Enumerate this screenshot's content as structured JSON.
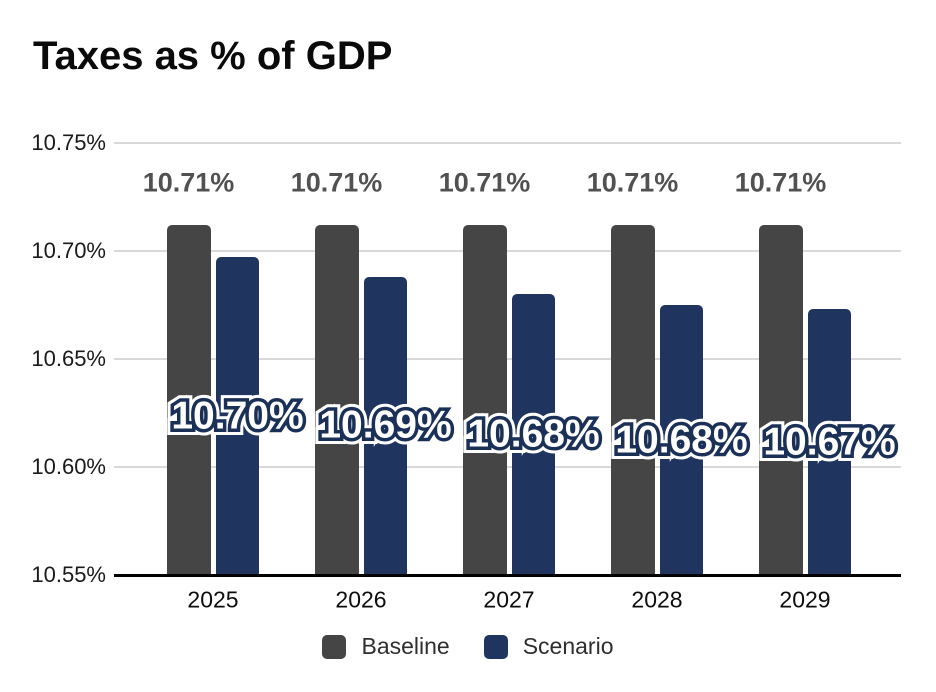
{
  "title": "Taxes as % of GDP",
  "colors": {
    "baseline_bar": "#454545",
    "scenario_bar": "#203460",
    "gridline": "#d9d9d9",
    "axis_line": "#000000",
    "baseline_data_label": "#515151",
    "scenario_data_label_fill": "#ffffff",
    "scenario_data_label_outline": "#1b3057",
    "background": "#ffffff"
  },
  "chart_data": {
    "type": "bar",
    "title": "Taxes as % of GDP",
    "categories": [
      "2025",
      "2026",
      "2027",
      "2028",
      "2029"
    ],
    "series": [
      {
        "name": "Baseline",
        "color": "#454545",
        "values": [
          10.712,
          10.712,
          10.712,
          10.712,
          10.712
        ],
        "data_labels": [
          "10.71%",
          "10.71%",
          "10.71%",
          "10.71%",
          "10.71%"
        ]
      },
      {
        "name": "Scenario",
        "color": "#203460",
        "values": [
          10.697,
          10.688,
          10.68,
          10.675,
          10.673
        ],
        "data_labels": [
          "10.70%",
          "10.69%",
          "10.68%",
          "10.68%",
          "10.67%"
        ]
      }
    ],
    "xlabel": "",
    "ylabel": "",
    "ylim": [
      10.55,
      10.75
    ],
    "yticks": [
      {
        "label": "10.75%",
        "value": 10.75
      },
      {
        "label": "10.70%",
        "value": 10.7
      },
      {
        "label": "10.65%",
        "value": 10.65
      },
      {
        "label": "10.60%",
        "value": 10.6
      },
      {
        "label": "10.55%",
        "value": 10.55
      }
    ],
    "grid": true,
    "legend_position": "bottom"
  },
  "legend": {
    "items": [
      {
        "label": "Baseline",
        "color": "#454545"
      },
      {
        "label": "Scenario",
        "color": "#203460"
      }
    ]
  }
}
